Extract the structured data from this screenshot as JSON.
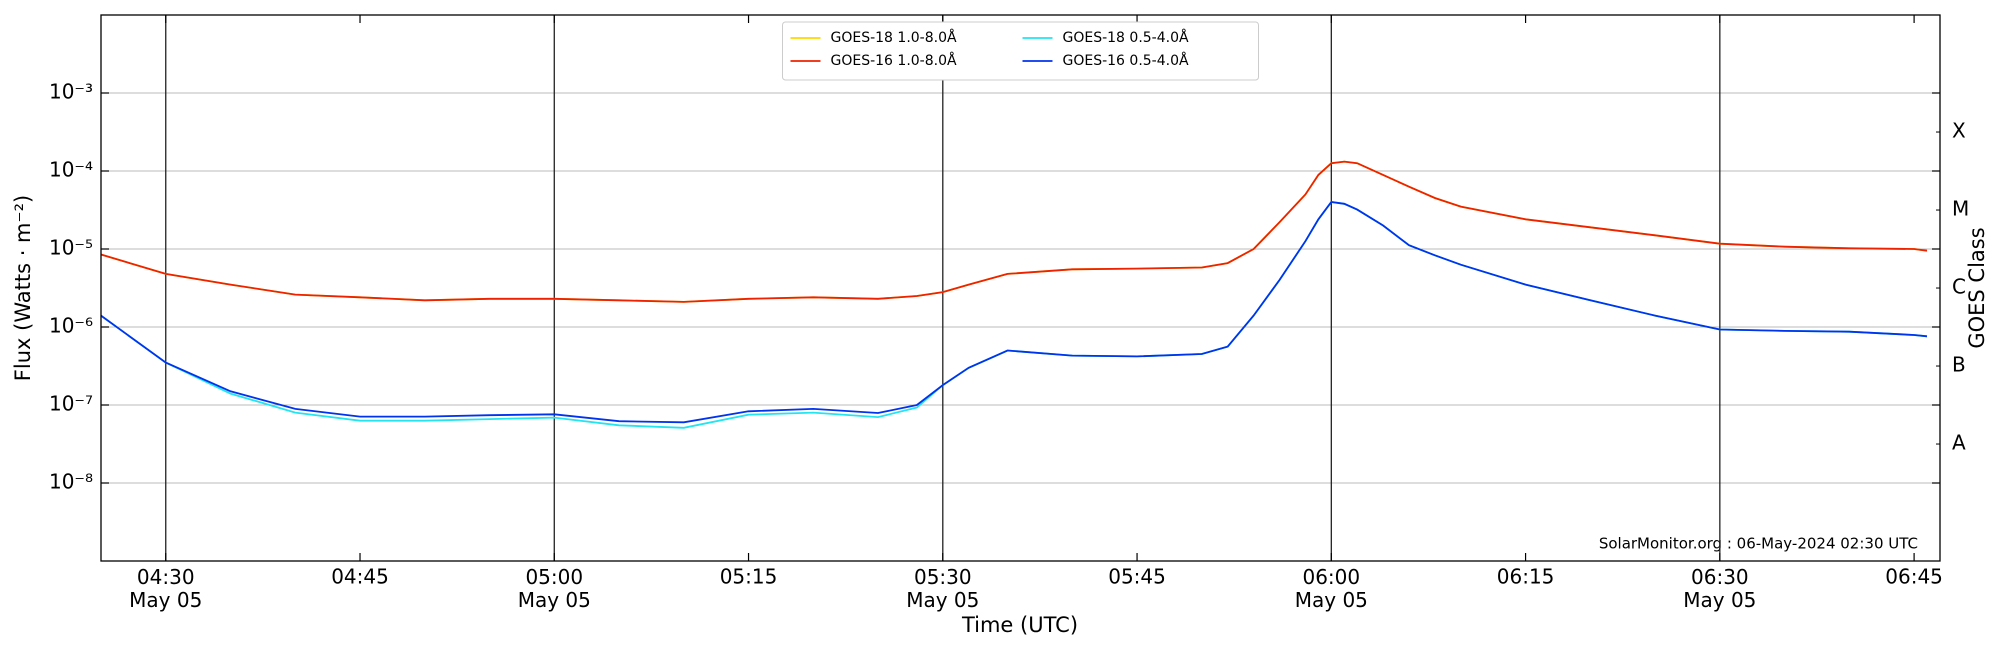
{
  "chart_data": {
    "type": "line",
    "ylabel": "Flux (Watts · m⁻²)",
    "xlabel": "Time (UTC)",
    "y2label": "GOES Class",
    "annotation": "SolarMonitor.org : 06-May-2024 02:30 UTC",
    "log_scale": true,
    "grid": true,
    "legend": "upper center",
    "xlim": [
      "04:25",
      "06:47"
    ],
    "xticks": [
      {
        "value": "04:30",
        "label": "04:30\nMay 05"
      },
      {
        "value": "04:45",
        "label": "04:45"
      },
      {
        "value": "05:00",
        "label": "05:00\nMay 05"
      },
      {
        "value": "05:15",
        "label": "05:15"
      },
      {
        "value": "05:30",
        "label": "05:30\nMay 05"
      },
      {
        "value": "05:45",
        "label": "05:45"
      },
      {
        "value": "06:00",
        "label": "06:00\nMay 05"
      },
      {
        "value": "06:15",
        "label": "06:15"
      },
      {
        "value": "06:30",
        "label": "06:30\nMay 05"
      },
      {
        "value": "06:45",
        "label": "06:45"
      }
    ],
    "ylim": [
      1e-09,
      0.01
    ],
    "yticks": [
      {
        "value": 1e-08,
        "label": "10⁻⁸"
      },
      {
        "value": 1e-07,
        "label": "10⁻⁷"
      },
      {
        "value": 1e-06,
        "label": "10⁻⁶"
      },
      {
        "value": 1e-05,
        "label": "10⁻⁵"
      },
      {
        "value": 0.0001,
        "label": "10⁻⁴"
      },
      {
        "value": 0.001,
        "label": "10⁻³"
      }
    ],
    "y2lim": [
      1e-09,
      0.01
    ],
    "y2ticks": [
      {
        "value": 3.16e-08,
        "label": "A"
      },
      {
        "value": 3.16e-07,
        "label": "B"
      },
      {
        "value": 3.16e-06,
        "label": "C"
      },
      {
        "value": 3.16e-05,
        "label": "M"
      },
      {
        "value": 0.000316,
        "label": "X"
      }
    ],
    "x": [
      "04:25",
      "04:30",
      "04:35",
      "04:40",
      "04:45",
      "04:50",
      "04:55",
      "05:00",
      "05:05",
      "05:10",
      "05:15",
      "05:20",
      "05:25",
      "05:28",
      "05:30",
      "05:32",
      "05:35",
      "05:40",
      "05:45",
      "05:50",
      "05:52",
      "05:54",
      "05:56",
      "05:58",
      "05:59",
      "06:00",
      "06:01",
      "06:02",
      "06:04",
      "06:06",
      "06:08",
      "06:10",
      "06:15",
      "06:20",
      "06:25",
      "06:30",
      "06:35",
      "06:40",
      "06:45",
      "06:46"
    ],
    "series": [
      {
        "name": "GOES-18 1.0-8.0Å",
        "color": "#ffd700",
        "values": [
          8.5e-06,
          4.8e-06,
          3.5e-06,
          2.6e-06,
          2.4e-06,
          2.2e-06,
          2.3e-06,
          2.3e-06,
          2.2e-06,
          2.1e-06,
          2.3e-06,
          2.4e-06,
          2.3e-06,
          2.5e-06,
          2.8e-06,
          3.5e-06,
          4.8e-06,
          5.5e-06,
          5.6e-06,
          5.8e-06,
          6.6e-06,
          1e-05,
          2.2e-05,
          5e-05,
          8.9e-05,
          0.000126,
          0.000132,
          0.000126,
          8.9e-05,
          6.3e-05,
          4.5e-05,
          3.5e-05,
          2.4e-05,
          1.9e-05,
          1.5e-05,
          1.17e-05,
          1.07e-05,
          1.02e-05,
          1e-05,
          9.5e-06
        ]
      },
      {
        "name": "GOES-16 1.0-8.0Å",
        "color": "#ee2200",
        "values": [
          8.5e-06,
          4.8e-06,
          3.5e-06,
          2.6e-06,
          2.4e-06,
          2.2e-06,
          2.3e-06,
          2.3e-06,
          2.2e-06,
          2.1e-06,
          2.3e-06,
          2.4e-06,
          2.3e-06,
          2.5e-06,
          2.8e-06,
          3.5e-06,
          4.8e-06,
          5.5e-06,
          5.6e-06,
          5.8e-06,
          6.6e-06,
          1e-05,
          2.2e-05,
          5e-05,
          8.9e-05,
          0.000126,
          0.000132,
          0.000126,
          8.9e-05,
          6.3e-05,
          4.5e-05,
          3.5e-05,
          2.4e-05,
          1.9e-05,
          1.5e-05,
          1.17e-05,
          1.07e-05,
          1.02e-05,
          1e-05,
          9.5e-06
        ]
      },
      {
        "name": "GOES-18 0.5-4.0Å",
        "color": "#22e5f0",
        "values": [
          1.4e-06,
          3.5e-07,
          1.4e-07,
          8e-08,
          6.3e-08,
          6.3e-08,
          6.6e-08,
          6.9e-08,
          5.5e-08,
          5.1e-08,
          7.5e-08,
          8e-08,
          7e-08,
          9.3e-08,
          1.8e-07,
          3e-07,
          5e-07,
          4.3e-07,
          4.2e-07,
          4.5e-07,
          5.6e-07,
          1.4e-06,
          4e-06,
          1.26e-05,
          2.4e-05,
          4e-05,
          3.8e-05,
          3.2e-05,
          2e-05,
          1.12e-05,
          8.3e-06,
          6.3e-06,
          3.5e-06,
          2.2e-06,
          1.4e-06,
          9.3e-07,
          8.9e-07,
          8.7e-07,
          7.9e-07,
          7.6e-07
        ]
      },
      {
        "name": "GOES-16 0.5-4.0Å",
        "color": "#0033ee",
        "values": [
          1.4e-06,
          3.5e-07,
          1.5e-07,
          8.9e-08,
          7.1e-08,
          7.1e-08,
          7.4e-08,
          7.6e-08,
          6.2e-08,
          6e-08,
          8.3e-08,
          8.9e-08,
          7.9e-08,
          1e-07,
          1.8e-07,
          3e-07,
          5e-07,
          4.3e-07,
          4.2e-07,
          4.5e-07,
          5.6e-07,
          1.4e-06,
          4e-06,
          1.26e-05,
          2.4e-05,
          4e-05,
          3.8e-05,
          3.2e-05,
          2e-05,
          1.12e-05,
          8.3e-06,
          6.3e-06,
          3.5e-06,
          2.2e-06,
          1.4e-06,
          9.3e-07,
          8.9e-07,
          8.7e-07,
          7.9e-07,
          7.6e-07
        ]
      }
    ]
  }
}
